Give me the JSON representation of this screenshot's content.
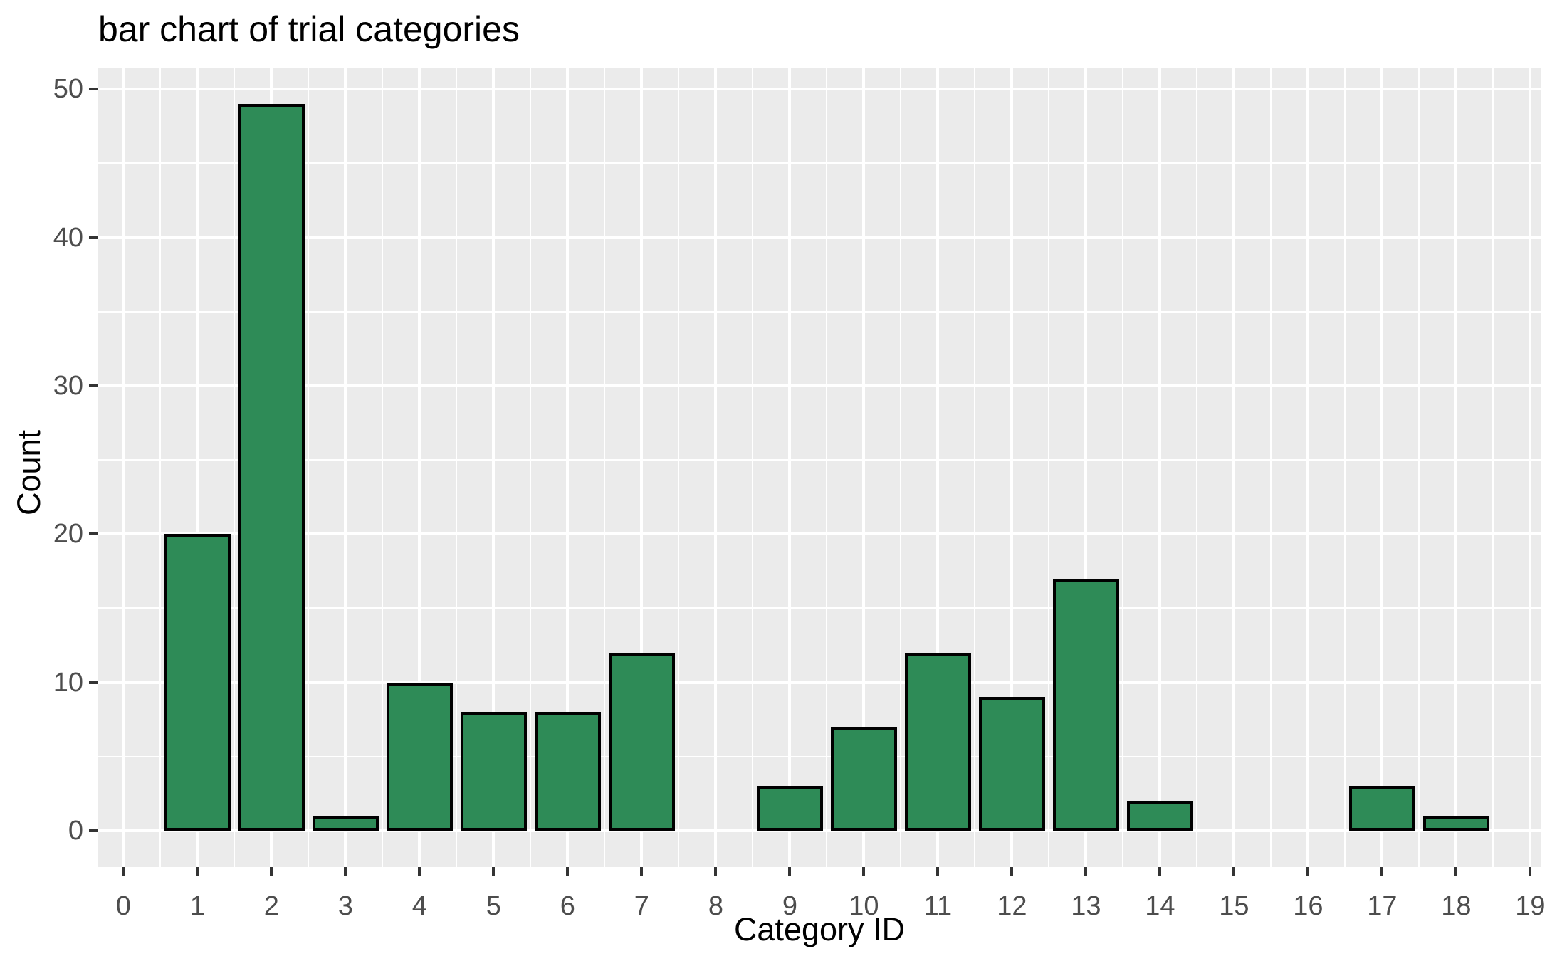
{
  "title": "bar chart of trial categories",
  "chart_data": {
    "type": "bar",
    "title": "bar chart of trial categories",
    "xlabel": "Category ID",
    "ylabel": "Count",
    "categories": [
      0,
      1,
      2,
      3,
      4,
      5,
      6,
      7,
      8,
      9,
      10,
      11,
      12,
      13,
      14,
      15,
      16,
      17,
      18,
      19
    ],
    "values": [
      0,
      20,
      49,
      1,
      10,
      8,
      8,
      12,
      0,
      3,
      7,
      12,
      9,
      17,
      2,
      0,
      0,
      3,
      1,
      0
    ],
    "x_ticks": [
      0,
      1,
      2,
      3,
      4,
      5,
      6,
      7,
      8,
      9,
      10,
      11,
      12,
      13,
      14,
      15,
      16,
      17,
      18,
      19
    ],
    "y_ticks": [
      0,
      10,
      20,
      30,
      40,
      50
    ],
    "y_minor_ticks": [
      5,
      15,
      25,
      35,
      45
    ],
    "xlim": [
      -0.34,
      19.14
    ],
    "ylim": [
      -2.45,
      51.4
    ],
    "bar_width": 0.9,
    "grid": "major-and-minor, white on gray panel",
    "legend": "none"
  },
  "colors": {
    "page_bg": "#FFFFFF",
    "panel_bg": "#EBEBEB",
    "grid": "#FFFFFF",
    "bar_fill": "#2E8B57",
    "bar_stroke": "#000000",
    "tick": "#333333",
    "axis_text": "#4D4D4D",
    "title_text": "#000000"
  }
}
